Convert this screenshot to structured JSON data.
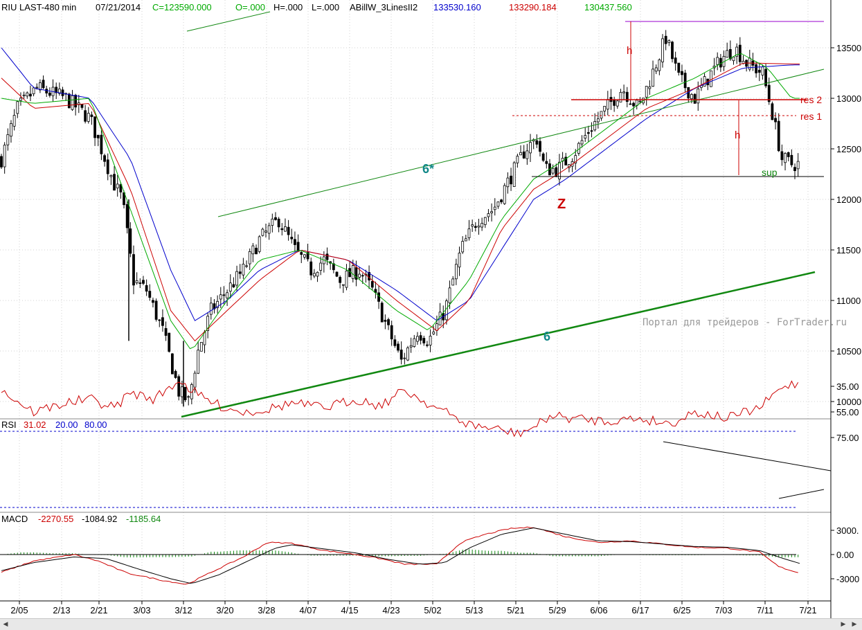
{
  "header": {
    "symbol": "RIU LAST-480 min",
    "date": "07/21/2014",
    "close": "C=123590.000",
    "open": "O=.000",
    "high": "H=.000",
    "low": "L=.000",
    "indicator": "ABillW_3LinesII2",
    "line1_value": "133530.160",
    "line2_value": "133290.184",
    "line3_value": "130437.560"
  },
  "rsi_header": {
    "label": "RSI",
    "value": "31.02",
    "low": "20.00",
    "high": "80.00"
  },
  "macd_header": {
    "label": "MACD",
    "v1": "-2270.55",
    "v2": "-1084.92",
    "v3": "-1185.64"
  },
  "watermark": "Портал для трейдеров - ForTrader.ru",
  "annotations": {
    "h_top": "h",
    "h_mid": "h",
    "res2": "res 2",
    "res1": "res 1",
    "sup": "sup",
    "z": "Z",
    "line6star": "6*",
    "line6": "6"
  },
  "colors": {
    "blue": "#0000cc",
    "red": "#cc0000",
    "green": "#00aa00",
    "purple": "#9900cc",
    "teal": "#118888",
    "darkgreen": "#118811"
  },
  "chart_data": [
    {
      "type": "candlestick",
      "title": "RIU LAST-480 min",
      "x_tick_labels": [
        "2/05",
        "2/13",
        "2/21",
        "3/03",
        "3/12",
        "3/20",
        "3/28",
        "4/07",
        "4/15",
        "4/23",
        "5/02",
        "5/13",
        "5/21",
        "5/29",
        "6/06",
        "6/17",
        "6/25",
        "7/03",
        "7/11",
        "7/21"
      ],
      "y_tick_labels": [
        "13500",
        "13000",
        "12500",
        "12000",
        "11500",
        "11000",
        "10500",
        "10000"
      ],
      "ylim": [
        9850,
        13900
      ],
      "close_anchors": [
        [
          0,
          12400
        ],
        [
          10,
          12900
        ],
        [
          22,
          13100
        ],
        [
          40,
          13000
        ],
        [
          55,
          12800
        ],
        [
          62,
          12500
        ],
        [
          70,
          12150
        ],
        [
          75,
          12000
        ],
        [
          82,
          11200
        ],
        [
          90,
          11100
        ],
        [
          100,
          10700
        ],
        [
          110,
          10100
        ],
        [
          116,
          10000
        ],
        [
          122,
          10500
        ],
        [
          130,
          10900
        ],
        [
          140,
          11100
        ],
        [
          150,
          11300
        ],
        [
          160,
          11600
        ],
        [
          172,
          11800
        ],
        [
          182,
          11500
        ],
        [
          192,
          11300
        ],
        [
          200,
          11400
        ],
        [
          210,
          11200
        ],
        [
          222,
          11300
        ],
        [
          230,
          11100
        ],
        [
          240,
          10700
        ],
        [
          248,
          10400
        ],
        [
          258,
          10700
        ],
        [
          265,
          10600
        ],
        [
          275,
          10900
        ],
        [
          285,
          11500
        ],
        [
          295,
          11800
        ],
        [
          305,
          11900
        ],
        [
          315,
          12200
        ],
        [
          325,
          12500
        ],
        [
          332,
          12600
        ],
        [
          337,
          12300
        ],
        [
          345,
          12300
        ],
        [
          355,
          12450
        ],
        [
          365,
          12700
        ],
        [
          375,
          12900
        ],
        [
          385,
          13100
        ],
        [
          395,
          12900
        ],
        [
          405,
          13300
        ],
        [
          412,
          13600
        ],
        [
          420,
          13200
        ],
        [
          430,
          13000
        ],
        [
          438,
          13200
        ],
        [
          447,
          13400
        ],
        [
          455,
          13500
        ],
        [
          462,
          13350
        ],
        [
          472,
          13250
        ],
        [
          478,
          12850
        ],
        [
          484,
          12400
        ],
        [
          490,
          12350
        ]
      ],
      "moving_averages": [
        {
          "name": "133530.160",
          "color": "#0000cc",
          "anchors": [
            [
              0,
              13500
            ],
            [
              20,
              13100
            ],
            [
              55,
              13000
            ],
            [
              80,
              12400
            ],
            [
              105,
              11300
            ],
            [
              120,
              10800
            ],
            [
              140,
              11000
            ],
            [
              160,
              11300
            ],
            [
              185,
              11500
            ],
            [
              215,
              11400
            ],
            [
              245,
              11100
            ],
            [
              270,
              10800
            ],
            [
              290,
              11000
            ],
            [
              310,
              11500
            ],
            [
              330,
              12000
            ],
            [
              350,
              12200
            ],
            [
              375,
              12500
            ],
            [
              400,
              12800
            ],
            [
              430,
              13100
            ],
            [
              460,
              13300
            ],
            [
              490,
              13330
            ]
          ]
        },
        {
          "name": "133290.184",
          "color": "#cc0000",
          "anchors": [
            [
              0,
              13200
            ],
            [
              20,
              12900
            ],
            [
              55,
              12950
            ],
            [
              80,
              12100
            ],
            [
              105,
              10900
            ],
            [
              120,
              10600
            ],
            [
              140,
              10900
            ],
            [
              160,
              11200
            ],
            [
              185,
              11500
            ],
            [
              215,
              11400
            ],
            [
              245,
              11000
            ],
            [
              270,
              10700
            ],
            [
              290,
              11000
            ],
            [
              310,
              11700
            ],
            [
              330,
              12100
            ],
            [
              350,
              12300
            ],
            [
              375,
              12600
            ],
            [
              400,
              12900
            ],
            [
              430,
              13100
            ],
            [
              460,
              13350
            ],
            [
              490,
              13340
            ]
          ]
        },
        {
          "name": "130437.560",
          "color": "#00aa00",
          "anchors": [
            [
              0,
              13000
            ],
            [
              20,
              12950
            ],
            [
              55,
              13000
            ],
            [
              80,
              11900
            ],
            [
              105,
              10800
            ],
            [
              118,
              10500
            ],
            [
              140,
              11000
            ],
            [
              160,
              11400
            ],
            [
              185,
              11500
            ],
            [
              215,
              11300
            ],
            [
              245,
              10900
            ],
            [
              265,
              10700
            ],
            [
              290,
              11200
            ],
            [
              310,
              11800
            ],
            [
              330,
              12200
            ],
            [
              350,
              12400
            ],
            [
              375,
              12700
            ],
            [
              400,
              13000
            ],
            [
              430,
              13200
            ],
            [
              458,
              13450
            ],
            [
              475,
              13300
            ],
            [
              490,
              13000
            ]
          ]
        }
      ]
    },
    {
      "type": "line",
      "title": "RSI",
      "series": [
        {
          "name": "RSI",
          "color": "#cc0000",
          "anchors": [
            [
              0,
              38
            ],
            [
              20,
              55
            ],
            [
              40,
              48
            ],
            [
              55,
              45
            ],
            [
              70,
              52
            ],
            [
              80,
              40
            ],
            [
              95,
              45
            ],
            [
              110,
              30
            ],
            [
              122,
              42
            ],
            [
              135,
              50
            ],
            [
              150,
              55
            ],
            [
              165,
              53
            ],
            [
              180,
              48
            ],
            [
              200,
              52
            ],
            [
              220,
              45
            ],
            [
              235,
              50
            ],
            [
              250,
              38
            ],
            [
              270,
              52
            ],
            [
              290,
              65
            ],
            [
              305,
              68
            ],
            [
              320,
              72
            ],
            [
              332,
              66
            ],
            [
              340,
              58
            ],
            [
              355,
              60
            ],
            [
              375,
              62
            ],
            [
              395,
              60
            ],
            [
              415,
              64
            ],
            [
              430,
              55
            ],
            [
              450,
              60
            ],
            [
              470,
              52
            ],
            [
              485,
              35
            ],
            [
              495,
              32
            ]
          ]
        }
      ],
      "y_tick_labels": [
        "75.00",
        "55.00",
        "35.00"
      ],
      "ylim": [
        20,
        82
      ],
      "reference_lines": [
        20,
        80
      ]
    },
    {
      "type": "line",
      "title": "MACD",
      "series": [
        {
          "name": "-2270.55",
          "color": "#cc0000",
          "anchors": [
            [
              0,
              -2200
            ],
            [
              20,
              -800
            ],
            [
              45,
              0
            ],
            [
              60,
              -800
            ],
            [
              78,
              -2300
            ],
            [
              100,
              -3200
            ],
            [
              115,
              -3700
            ],
            [
              130,
              -2200
            ],
            [
              150,
              -300
            ],
            [
              165,
              1500
            ],
            [
              180,
              1400
            ],
            [
              200,
              500
            ],
            [
              220,
              0
            ],
            [
              235,
              -500
            ],
            [
              250,
              -1200
            ],
            [
              270,
              -1200
            ],
            [
              285,
              1500
            ],
            [
              300,
              2500
            ],
            [
              315,
              3200
            ],
            [
              330,
              3400
            ],
            [
              350,
              2200
            ],
            [
              370,
              1500
            ],
            [
              390,
              1700
            ],
            [
              410,
              1300
            ],
            [
              430,
              900
            ],
            [
              450,
              800
            ],
            [
              470,
              300
            ],
            [
              482,
              -1500
            ],
            [
              495,
              -2300
            ]
          ]
        },
        {
          "name": "-1084.92",
          "color": "#000000",
          "anchors": [
            [
              0,
              -2000
            ],
            [
              20,
              -1000
            ],
            [
              45,
              -300
            ],
            [
              65,
              -500
            ],
            [
              85,
              -1800
            ],
            [
              105,
              -3000
            ],
            [
              118,
              -3600
            ],
            [
              135,
              -2500
            ],
            [
              155,
              -600
            ],
            [
              170,
              800
            ],
            [
              180,
              1200
            ],
            [
              200,
              700
            ],
            [
              220,
              200
            ],
            [
              240,
              -600
            ],
            [
              260,
              -1200
            ],
            [
              275,
              -1000
            ],
            [
              290,
              800
            ],
            [
              310,
              2500
            ],
            [
              330,
              3300
            ],
            [
              350,
              2500
            ],
            [
              370,
              1700
            ],
            [
              390,
              1600
            ],
            [
              410,
              1300
            ],
            [
              430,
              1000
            ],
            [
              450,
              900
            ],
            [
              470,
              500
            ],
            [
              485,
              -500
            ],
            [
              495,
              -1100
            ]
          ]
        }
      ],
      "y_tick_labels": [
        "3000.",
        "0.00",
        "-3000"
      ],
      "ylim": [
        -4300,
        4200
      ]
    }
  ]
}
